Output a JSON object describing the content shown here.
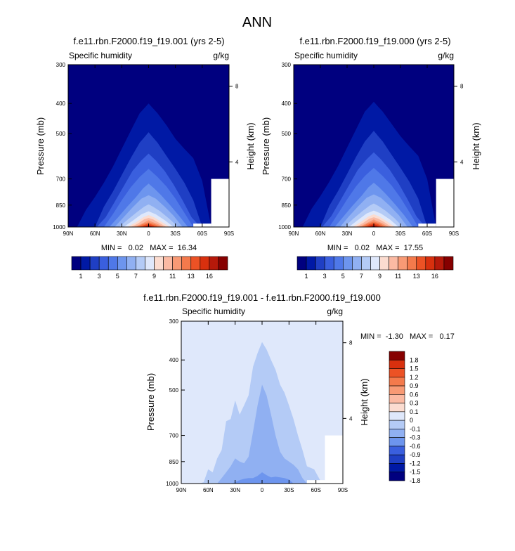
{
  "page_title": "ANN",
  "colors": {
    "abs_levels": [
      "#00007f",
      "#0019a5",
      "#1f3fc4",
      "#3a5fde",
      "#4f78e8",
      "#6d95ee",
      "#90b0f2",
      "#b4cbf6",
      "#dfe8fb",
      "#fbdcd0",
      "#fbbaa3",
      "#f89a75",
      "#f47a4c",
      "#ec5225",
      "#d8300e",
      "#b6190a",
      "#860000"
    ],
    "diff_levels": [
      "#00007f",
      "#0019a5",
      "#1f3fc4",
      "#3a5fde",
      "#6d95ee",
      "#90b0f2",
      "#b4cbf6",
      "#dfe8fb",
      "#fbdcd0",
      "#fbbaa3",
      "#f89a75",
      "#f47a4c",
      "#ec5225",
      "#d8300e",
      "#860000"
    ]
  },
  "panels": [
    {
      "title": "f.e11.rbn.F2000.f19_f19.001 (yrs 2-5)",
      "field_label": "Specific humidity",
      "units_label": "g/kg",
      "ylabel": "Pressure (mb)",
      "right_label": "Height (km)",
      "stats": "MIN =   0.02   MAX =  16.34",
      "colorbar_ticks": [
        "1",
        "3",
        "5",
        "7",
        "9",
        "11",
        "13",
        "16"
      ]
    },
    {
      "title": "f.e11.rbn.F2000.f19_f19.000 (yrs 2-5)",
      "field_label": "Specific humidity",
      "units_label": "g/kg",
      "ylabel": "Pressure (mb)",
      "right_label": "Height (km)",
      "stats": "MIN =   0.02   MAX =  17.55",
      "colorbar_ticks": [
        "1",
        "3",
        "5",
        "7",
        "9",
        "11",
        "13",
        "16"
      ]
    },
    {
      "title": "f.e11.rbn.F2000.f19_f19.001 - f.e11.rbn.F2000.f19_f19.000",
      "field_label": "Specific humidity",
      "units_label": "g/kg",
      "ylabel": "Pressure (mb)",
      "right_label": "Height (km)",
      "stats": "MIN =  -1.30   MAX =   0.17",
      "colorbar_ticks": [
        "1.8",
        "1.5",
        "1.2",
        "0.9",
        "0.6",
        "0.3",
        "0.1",
        "0",
        "-0.1",
        "-0.3",
        "-0.6",
        "-0.9",
        "-1.2",
        "-1.5",
        "-1.8"
      ]
    }
  ],
  "chart_data": [
    {
      "type": "heatmap",
      "title": "f.e11.rbn.F2000.f19_f19.001 (yrs 2-5)",
      "subtitle_left": "Specific humidity",
      "subtitle_right": "g/kg",
      "ylabel": "Pressure (mb)",
      "ylabel_right": "Height (km)",
      "x_ticks": [
        "90N",
        "60N",
        "30N",
        "0",
        "30S",
        "60S",
        "90S"
      ],
      "y_ticks": [
        "300",
        "400",
        "500",
        "700",
        "850",
        "1000"
      ],
      "y_ticks_right": [
        "8",
        "4"
      ],
      "y_log": true,
      "ylim": [
        1000,
        300
      ],
      "min": 0.02,
      "max": 16.34,
      "contour_levels": [
        1,
        2,
        3,
        4,
        5,
        6,
        7,
        8,
        9,
        10,
        11,
        12,
        13,
        14,
        15,
        16
      ],
      "contours": [
        {
          "lat": [
            -90,
            -80,
            -70,
            -60,
            -50,
            -40,
            -30,
            -20,
            -10,
            -5,
            0,
            5,
            10,
            20,
            30,
            40,
            50,
            60,
            70,
            80,
            90
          ],
          "p": [
            1000,
            1000,
            1000,
            710,
            600,
            560,
            520,
            470,
            430,
            415,
            400,
            415,
            430,
            490,
            560,
            640,
            720,
            800,
            880,
            1000,
            1000
          ]
        },
        {
          "lat": [
            -70,
            -60,
            -50,
            -40,
            -30,
            -20,
            -10,
            -5,
            0,
            5,
            10,
            20,
            30,
            40,
            50,
            60,
            70
          ],
          "p": [
            1000,
            1000,
            820,
            720,
            650,
            590,
            535,
            515,
            495,
            515,
            535,
            600,
            680,
            770,
            860,
            1000,
            1000
          ]
        },
        {
          "lat": [
            -58,
            -48,
            -38,
            -28,
            -18,
            -8,
            0,
            8,
            18,
            28,
            38,
            48,
            58
          ],
          "p": [
            1000,
            930,
            820,
            730,
            660,
            610,
            580,
            610,
            660,
            740,
            830,
            930,
            1000
          ]
        },
        {
          "lat": [
            -50,
            -40,
            -30,
            -20,
            -10,
            0,
            10,
            20,
            30,
            40,
            50
          ],
          "p": [
            1000,
            900,
            810,
            740,
            690,
            650,
            690,
            745,
            820,
            910,
            1000
          ]
        },
        {
          "lat": [
            -44,
            -34,
            -24,
            -14,
            -6,
            0,
            6,
            14,
            24,
            34,
            44
          ],
          "p": [
            1000,
            920,
            850,
            790,
            750,
            725,
            750,
            800,
            860,
            930,
            1000
          ]
        },
        {
          "lat": [
            -38,
            -28,
            -18,
            -8,
            0,
            8,
            18,
            28,
            38
          ],
          "p": [
            1000,
            920,
            860,
            810,
            790,
            810,
            865,
            930,
            1000
          ]
        },
        {
          "lat": [
            -33,
            -23,
            -13,
            -5,
            0,
            5,
            13,
            23,
            33
          ],
          "p": [
            1000,
            940,
            890,
            860,
            845,
            860,
            895,
            945,
            1000
          ]
        },
        {
          "lat": [
            -28,
            -18,
            -8,
            0,
            8,
            18,
            28
          ],
          "p": [
            1000,
            950,
            910,
            890,
            910,
            955,
            1000
          ]
        },
        {
          "lat": [
            -24,
            -14,
            -6,
            0,
            6,
            14,
            24
          ],
          "p": [
            1000,
            960,
            930,
            915,
            930,
            965,
            1000
          ]
        },
        {
          "lat": [
            -20,
            -12,
            -5,
            0,
            5,
            12,
            20
          ],
          "p": [
            1000,
            970,
            945,
            935,
            945,
            975,
            1000
          ]
        },
        {
          "lat": [
            -17,
            -9,
            -3,
            0,
            3,
            9,
            17
          ],
          "p": [
            1000,
            975,
            960,
            950,
            960,
            980,
            1000
          ]
        },
        {
          "lat": [
            -14,
            -7,
            0,
            7,
            14
          ],
          "p": [
            1000,
            980,
            965,
            980,
            1000
          ]
        },
        {
          "lat": [
            -11,
            -5,
            0,
            5,
            11
          ],
          "p": [
            1000,
            985,
            975,
            985,
            1000
          ]
        },
        {
          "lat": [
            -8,
            -3,
            0,
            3,
            8
          ],
          "p": [
            1000,
            990,
            983,
            990,
            1000
          ]
        },
        {
          "lat": [
            -6,
            0,
            6
          ],
          "p": [
            1000,
            990,
            1000
          ]
        },
        {
          "lat": [
            -4,
            0,
            4
          ],
          "p": [
            1000,
            996,
            1000
          ]
        }
      ]
    },
    {
      "type": "heatmap",
      "title": "f.e11.rbn.F2000.f19_f19.000 (yrs 2-5)",
      "subtitle_left": "Specific humidity",
      "subtitle_right": "g/kg",
      "ylabel": "Pressure (mb)",
      "ylabel_right": "Height (km)",
      "x_ticks": [
        "90N",
        "60N",
        "30N",
        "0",
        "30S",
        "60S",
        "90S"
      ],
      "y_ticks": [
        "300",
        "400",
        "500",
        "700",
        "850",
        "1000"
      ],
      "y_ticks_right": [
        "8",
        "4"
      ],
      "y_log": true,
      "ylim": [
        1000,
        300
      ],
      "min": 0.02,
      "max": 17.55,
      "contour_levels": [
        1,
        2,
        3,
        4,
        5,
        6,
        7,
        8,
        9,
        10,
        11,
        12,
        13,
        14,
        15,
        16
      ],
      "contours": [
        {
          "lat": [
            -90,
            -80,
            -70,
            -60,
            -50,
            -40,
            -30,
            -20,
            -10,
            -5,
            0,
            5,
            10,
            20,
            30,
            40,
            50,
            60,
            70,
            80,
            90
          ],
          "p": [
            1000,
            1000,
            1000,
            700,
            590,
            550,
            510,
            465,
            425,
            410,
            395,
            410,
            425,
            485,
            555,
            635,
            715,
            795,
            875,
            1000,
            1000
          ]
        },
        {
          "lat": [
            -70,
            -60,
            -50,
            -40,
            -30,
            -20,
            -10,
            -5,
            0,
            5,
            10,
            20,
            30,
            40,
            50,
            60,
            70
          ],
          "p": [
            1000,
            1000,
            810,
            715,
            645,
            585,
            530,
            510,
            490,
            510,
            530,
            595,
            675,
            765,
            855,
            1000,
            1000
          ]
        },
        {
          "lat": [
            -58,
            -48,
            -38,
            -28,
            -18,
            -8,
            0,
            8,
            18,
            28,
            38,
            48,
            58
          ],
          "p": [
            1000,
            925,
            815,
            725,
            655,
            605,
            575,
            605,
            655,
            735,
            825,
            925,
            1000
          ]
        },
        {
          "lat": [
            -50,
            -40,
            -30,
            -20,
            -10,
            0,
            10,
            20,
            30,
            40,
            50
          ],
          "p": [
            1000,
            895,
            805,
            735,
            685,
            645,
            685,
            740,
            815,
            905,
            1000
          ]
        },
        {
          "lat": [
            -44,
            -34,
            -24,
            -14,
            -6,
            0,
            6,
            14,
            24,
            34,
            44
          ],
          "p": [
            1000,
            915,
            845,
            785,
            745,
            720,
            745,
            795,
            855,
            925,
            1000
          ]
        },
        {
          "lat": [
            -38,
            -28,
            -18,
            -8,
            0,
            8,
            18,
            28,
            38
          ],
          "p": [
            1000,
            915,
            855,
            805,
            785,
            805,
            860,
            925,
            1000
          ]
        },
        {
          "lat": [
            -33,
            -23,
            -13,
            -5,
            0,
            5,
            13,
            23,
            33
          ],
          "p": [
            1000,
            935,
            885,
            855,
            840,
            855,
            890,
            940,
            1000
          ]
        },
        {
          "lat": [
            -28,
            -18,
            -8,
            0,
            8,
            18,
            28
          ],
          "p": [
            1000,
            945,
            905,
            885,
            905,
            950,
            1000
          ]
        },
        {
          "lat": [
            -24,
            -14,
            -6,
            0,
            6,
            14,
            24
          ],
          "p": [
            1000,
            955,
            925,
            910,
            925,
            960,
            1000
          ]
        },
        {
          "lat": [
            -20,
            -12,
            -5,
            0,
            5,
            12,
            20
          ],
          "p": [
            1000,
            965,
            940,
            930,
            940,
            970,
            1000
          ]
        },
        {
          "lat": [
            -17,
            -9,
            -3,
            0,
            3,
            9,
            17
          ],
          "p": [
            1000,
            970,
            955,
            945,
            955,
            975,
            1000
          ]
        },
        {
          "lat": [
            -14,
            -7,
            0,
            7,
            14
          ],
          "p": [
            1000,
            975,
            960,
            975,
            1000
          ]
        },
        {
          "lat": [
            -11,
            -5,
            0,
            5,
            11
          ],
          "p": [
            1000,
            980,
            970,
            980,
            1000
          ]
        },
        {
          "lat": [
            -8,
            -3,
            0,
            3,
            8
          ],
          "p": [
            1000,
            985,
            978,
            985,
            1000
          ]
        },
        {
          "lat": [
            -6,
            0,
            6
          ],
          "p": [
            1000,
            988,
            1000
          ]
        },
        {
          "lat": [
            -4,
            0,
            4
          ],
          "p": [
            1000,
            993,
            1000
          ]
        }
      ]
    },
    {
      "type": "heatmap",
      "title": "f.e11.rbn.F2000.f19_f19.001 - f.e11.rbn.F2000.f19_f19.000",
      "subtitle_left": "Specific humidity",
      "subtitle_right": "g/kg",
      "ylabel": "Pressure (mb)",
      "ylabel_right": "Height (km)",
      "x_ticks": [
        "90N",
        "60N",
        "30N",
        "0",
        "30S",
        "60S",
        "90S"
      ],
      "y_ticks": [
        "300",
        "400",
        "500",
        "700",
        "850",
        "1000"
      ],
      "y_ticks_right": [
        "8",
        "4"
      ],
      "y_log": true,
      "ylim": [
        1000,
        300
      ],
      "min": -1.3,
      "max": 0.17,
      "contour_levels": [
        -1.8,
        -1.5,
        -1.2,
        -0.9,
        -0.6,
        -0.3,
        -0.1,
        0,
        0.1,
        0.3,
        0.6,
        0.9,
        1.2,
        1.5,
        1.8
      ],
      "background_level": 0,
      "contours": [
        {
          "level": -0.1,
          "lat": [
            -70,
            -65,
            -58,
            -50,
            -45,
            -40,
            -35,
            -30,
            -25,
            -20,
            -15,
            -10,
            -5,
            0,
            5,
            10,
            15,
            20,
            25,
            30,
            35,
            40,
            45,
            50,
            55,
            60,
            65,
            70
          ],
          "p": [
            1000,
            980,
            900,
            880,
            780,
            700,
            620,
            560,
            510,
            480,
            430,
            400,
            370,
            350,
            380,
            420,
            520,
            560,
            600,
            540,
            620,
            630,
            780,
            830,
            920,
            900,
            990,
            1000
          ]
        },
        {
          "level": -0.3,
          "lat": [
            -50,
            -45,
            -40,
            -35,
            -30,
            -25,
            -20,
            -15,
            -10,
            -5,
            0,
            5,
            10,
            15,
            20,
            25,
            30,
            35,
            40,
            45,
            50
          ],
          "p": [
            1000,
            960,
            900,
            870,
            850,
            830,
            790,
            700,
            600,
            520,
            480,
            560,
            680,
            820,
            860,
            850,
            830,
            880,
            920,
            960,
            1000
          ]
        },
        {
          "level": -0.6,
          "lat": [
            -35,
            -30,
            -25,
            -20,
            -15,
            -10,
            -5,
            0,
            5,
            10,
            15,
            20,
            25,
            30,
            35
          ],
          "p": [
            1000,
            970,
            960,
            955,
            950,
            955,
            940,
            920,
            945,
            960,
            960,
            965,
            975,
            990,
            1000
          ]
        }
      ]
    }
  ]
}
